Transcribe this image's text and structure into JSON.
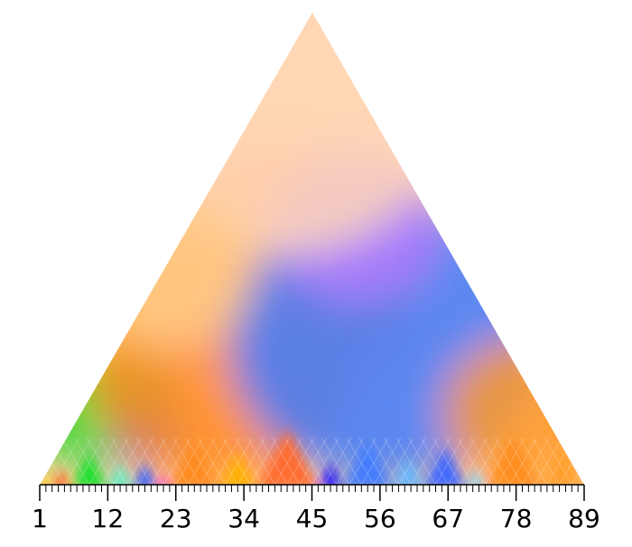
{
  "chart_data": {
    "type": "heatmap",
    "title": "",
    "xlabel": "",
    "ylabel": "",
    "layout": "triangular keyscape (apex at top, base positions along x)",
    "x_range": [
      1,
      89
    ],
    "x_major_ticks": [
      1,
      12,
      23,
      34,
      45,
      56,
      67,
      78,
      89
    ],
    "x_tick_labels": [
      "1",
      "12",
      "23",
      "34",
      "45",
      "56",
      "67",
      "78",
      "89"
    ],
    "x_minor_tick_step": 1,
    "segments": [
      {
        "start": 1,
        "end": 3,
        "color": "#ffd400"
      },
      {
        "start": 3,
        "end": 6,
        "color": "#ff5a1e"
      },
      {
        "start": 6,
        "end": 12,
        "color": "#16e02a"
      },
      {
        "start": 12,
        "end": 16,
        "color": "#59f0c8"
      },
      {
        "start": 16,
        "end": 20,
        "color": "#2a5cff"
      },
      {
        "start": 20,
        "end": 22,
        "color": "#ff2bd2"
      },
      {
        "start": 22,
        "end": 30,
        "color": "#ff8a1a"
      },
      {
        "start": 30,
        "end": 36,
        "color": "#ffb000"
      },
      {
        "start": 36,
        "end": 46,
        "color": "#ff6a2a"
      },
      {
        "start": 46,
        "end": 50,
        "color": "#1a10ff"
      },
      {
        "start": 50,
        "end": 58,
        "color": "#3f7bff"
      },
      {
        "start": 58,
        "end": 63,
        "color": "#66b8ff"
      },
      {
        "start": 63,
        "end": 70,
        "color": "#3a66ff"
      },
      {
        "start": 70,
        "end": 73,
        "color": "#7fd6ff"
      },
      {
        "start": 73,
        "end": 82,
        "color": "#ff8c1a"
      },
      {
        "start": 82,
        "end": 89,
        "color": "#ff9f2a"
      }
    ],
    "regions": [
      {
        "cx": 10,
        "cy": 0.18,
        "r": 0.16,
        "color": "#22dd33"
      },
      {
        "cx": 14,
        "cy": 0.35,
        "r": 0.12,
        "color": "#ffff66"
      },
      {
        "cx": 18,
        "cy": 0.1,
        "r": 0.08,
        "color": "#3b6bff"
      },
      {
        "cx": 30,
        "cy": 0.25,
        "r": 0.28,
        "color": "#ff8a22"
      },
      {
        "cx": 40,
        "cy": 0.45,
        "r": 0.3,
        "color": "#ff9a5a"
      },
      {
        "cx": 57,
        "cy": 0.3,
        "r": 0.33,
        "color": "#3f7bff"
      },
      {
        "cx": 52,
        "cy": 0.55,
        "r": 0.18,
        "color": "#b57bff"
      },
      {
        "cx": 80,
        "cy": 0.15,
        "r": 0.18,
        "color": "#ff9a2a"
      },
      {
        "cx": 40,
        "cy": 0.8,
        "r": 0.35,
        "color": "#ffd8b8"
      },
      {
        "cx": 22,
        "cy": 0.45,
        "r": 0.18,
        "color": "#ffcc88"
      }
    ],
    "base_fill": "#ffcf9a",
    "grid": false,
    "legend": "none"
  }
}
